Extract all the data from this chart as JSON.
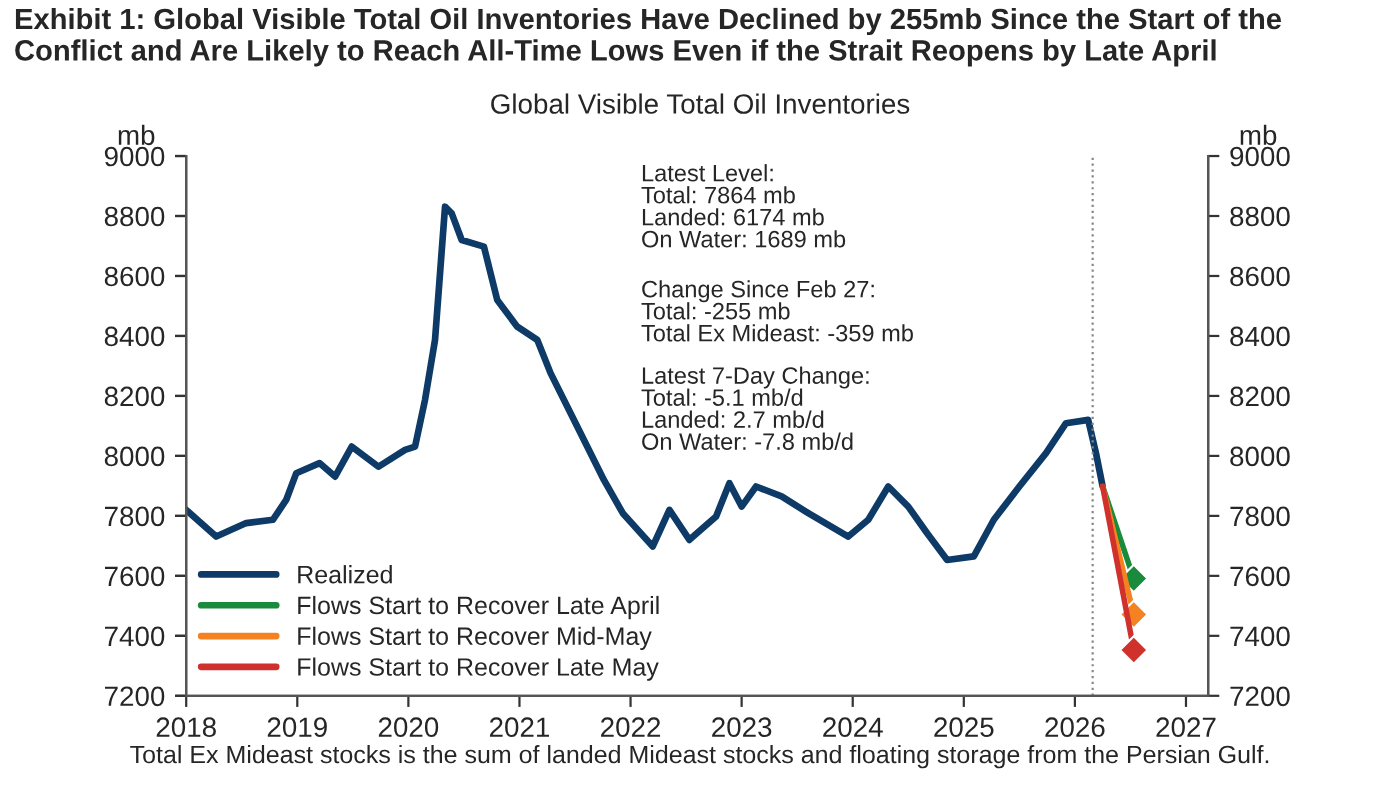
{
  "chart_data": {
    "type": "line",
    "title": "Exhibit 1: Global Visible Total Oil Inventories Have Declined by 255mb Since the Start of the Conflict and Are Likely to Reach All-Time Lows Even if the Strait Reopens by Late April",
    "subtitle": "Global Visible Total Oil Inventories",
    "ylabel": "mb",
    "y2label": "mb",
    "series": [
      {
        "name": "Realized",
        "color": "#0d3a66",
        "marker": "none",
        "x": [
          2018.0,
          2018.27,
          2018.54,
          2018.78,
          2018.9,
          2018.99,
          2019.2,
          2019.34,
          2019.49,
          2019.73,
          2019.97,
          2020.06,
          2020.15,
          2020.24,
          2020.33,
          2020.39,
          2020.48,
          2020.68,
          2020.8,
          2020.98,
          2021.16,
          2021.28,
          2021.52,
          2021.76,
          2021.93,
          2022.2,
          2022.35,
          2022.53,
          2022.77,
          2022.89,
          2023.0,
          2023.13,
          2023.36,
          2023.6,
          2023.96,
          2024.14,
          2024.32,
          2024.5,
          2024.67,
          2024.85,
          2025.09,
          2025.27,
          2025.5,
          2025.74,
          2025.92,
          2026.12,
          2026.19,
          2026.25
        ],
        "values": [
          7820,
          7731,
          7776,
          7787,
          7853,
          7942,
          7976,
          7931,
          8031,
          7964,
          8020,
          8031,
          8187,
          8387,
          8831,
          8809,
          8720,
          8698,
          8520,
          8431,
          8387,
          8276,
          8098,
          7920,
          7809,
          7698,
          7820,
          7720,
          7798,
          7909,
          7831,
          7898,
          7865,
          7809,
          7731,
          7787,
          7898,
          7831,
          7742,
          7653,
          7665,
          7787,
          7898,
          8009,
          8109,
          8120,
          8009,
          7898
        ]
      },
      {
        "name": "Flows Start to Recover Late April",
        "color": "#1a8a3c",
        "marker": "diamond",
        "x": [
          2026.25,
          2026.53
        ],
        "values": [
          7898,
          7591
        ]
      },
      {
        "name": "Flows Start to Recover Mid-May",
        "color": "#f58220",
        "marker": "diamond",
        "x": [
          2026.25,
          2026.53
        ],
        "values": [
          7898,
          7471
        ]
      },
      {
        "name": "Flows Start to Recover Late May",
        "color": "#d0312d",
        "marker": "diamond",
        "x": [
          2026.25,
          2026.53
        ],
        "values": [
          7898,
          7353
        ]
      }
    ],
    "xlim": [
      2018,
      2027.2
    ],
    "xticks": [
      2018,
      2019,
      2020,
      2021,
      2022,
      2023,
      2024,
      2025,
      2026,
      2027
    ],
    "ylim": [
      7200,
      9000
    ],
    "yticks": [
      7200,
      7400,
      7600,
      7800,
      8000,
      8200,
      8400,
      8600,
      8800,
      9000
    ],
    "y2lim": [
      7200,
      9000
    ],
    "y2ticks": [
      7200,
      7400,
      7600,
      7800,
      8000,
      8200,
      8400,
      8600,
      8800,
      9000
    ],
    "ref_lines": [
      {
        "axis": "x",
        "value": 2026.16,
        "color": "#888888",
        "line_style": "dotted"
      }
    ],
    "legend": "bottom left",
    "grid": false,
    "annotations": [
      {
        "text": "Latest Level:\nTotal: 7864 mb\nLanded: 6174 mb\nOn Water: 1689 mb"
      },
      {
        "text": "Change Since Feb 27:\nTotal: -255 mb\nTotal Ex Mideast: -359 mb"
      },
      {
        "text": "Latest 7-Day Change:\nTotal: -5.1 mb/d\nLanded: 2.7 mb/d\nOn Water: -7.8 mb/d"
      },
      {
        "text": "Total Ex Mideast stocks is the sum of landed Mideast stocks and floating storage from the Persian Gulf."
      }
    ]
  }
}
